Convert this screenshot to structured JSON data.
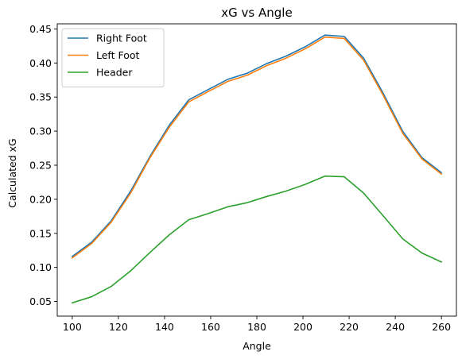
{
  "chart_data": {
    "type": "line",
    "title": "xG vs Angle",
    "xlabel": "Angle",
    "ylabel": "Calculated xG",
    "xlim": [
      93.5,
      266.5
    ],
    "ylim": [
      0.0285,
      0.4575
    ],
    "x_ticks": [
      100,
      120,
      140,
      160,
      180,
      200,
      220,
      240,
      260
    ],
    "x_tick_labels": [
      "100",
      "120",
      "140",
      "160",
      "180",
      "200",
      "220",
      "240",
      "260"
    ],
    "y_ticks": [
      0.05,
      0.1,
      0.15,
      0.2,
      0.25,
      0.3,
      0.35,
      0.4,
      0.45
    ],
    "y_tick_labels": [
      "0.05",
      "0.10",
      "0.15",
      "0.20",
      "0.25",
      "0.30",
      "0.35",
      "0.40",
      "0.45"
    ],
    "grid": false,
    "legend_position": "top-left",
    "x": [
      100,
      108.4,
      116.8,
      125.3,
      133.7,
      142.1,
      150.5,
      158.9,
      167.4,
      175.8,
      184.2,
      192.6,
      201.1,
      209.5,
      217.9,
      226.3,
      234.7,
      243.2,
      251.6,
      260
    ],
    "series": [
      {
        "name": "Right Foot",
        "color": "#1f77b4",
        "values": [
          0.116,
          0.137,
          0.168,
          0.212,
          0.263,
          0.309,
          0.346,
          0.361,
          0.376,
          0.385,
          0.399,
          0.41,
          0.424,
          0.441,
          0.439,
          0.407,
          0.356,
          0.3,
          0.261,
          0.239
        ]
      },
      {
        "name": "Left Foot",
        "color": "#ff7f0e",
        "values": [
          0.114,
          0.135,
          0.166,
          0.209,
          0.261,
          0.306,
          0.343,
          0.358,
          0.373,
          0.382,
          0.396,
          0.407,
          0.421,
          0.438,
          0.436,
          0.404,
          0.353,
          0.297,
          0.259,
          0.237
        ]
      },
      {
        "name": "Header",
        "color": "#2ca02c",
        "values": [
          0.048,
          0.057,
          0.072,
          0.095,
          0.122,
          0.148,
          0.17,
          0.179,
          0.189,
          0.195,
          0.204,
          0.212,
          0.222,
          0.234,
          0.233,
          0.209,
          0.176,
          0.142,
          0.121,
          0.108
        ]
      }
    ]
  }
}
